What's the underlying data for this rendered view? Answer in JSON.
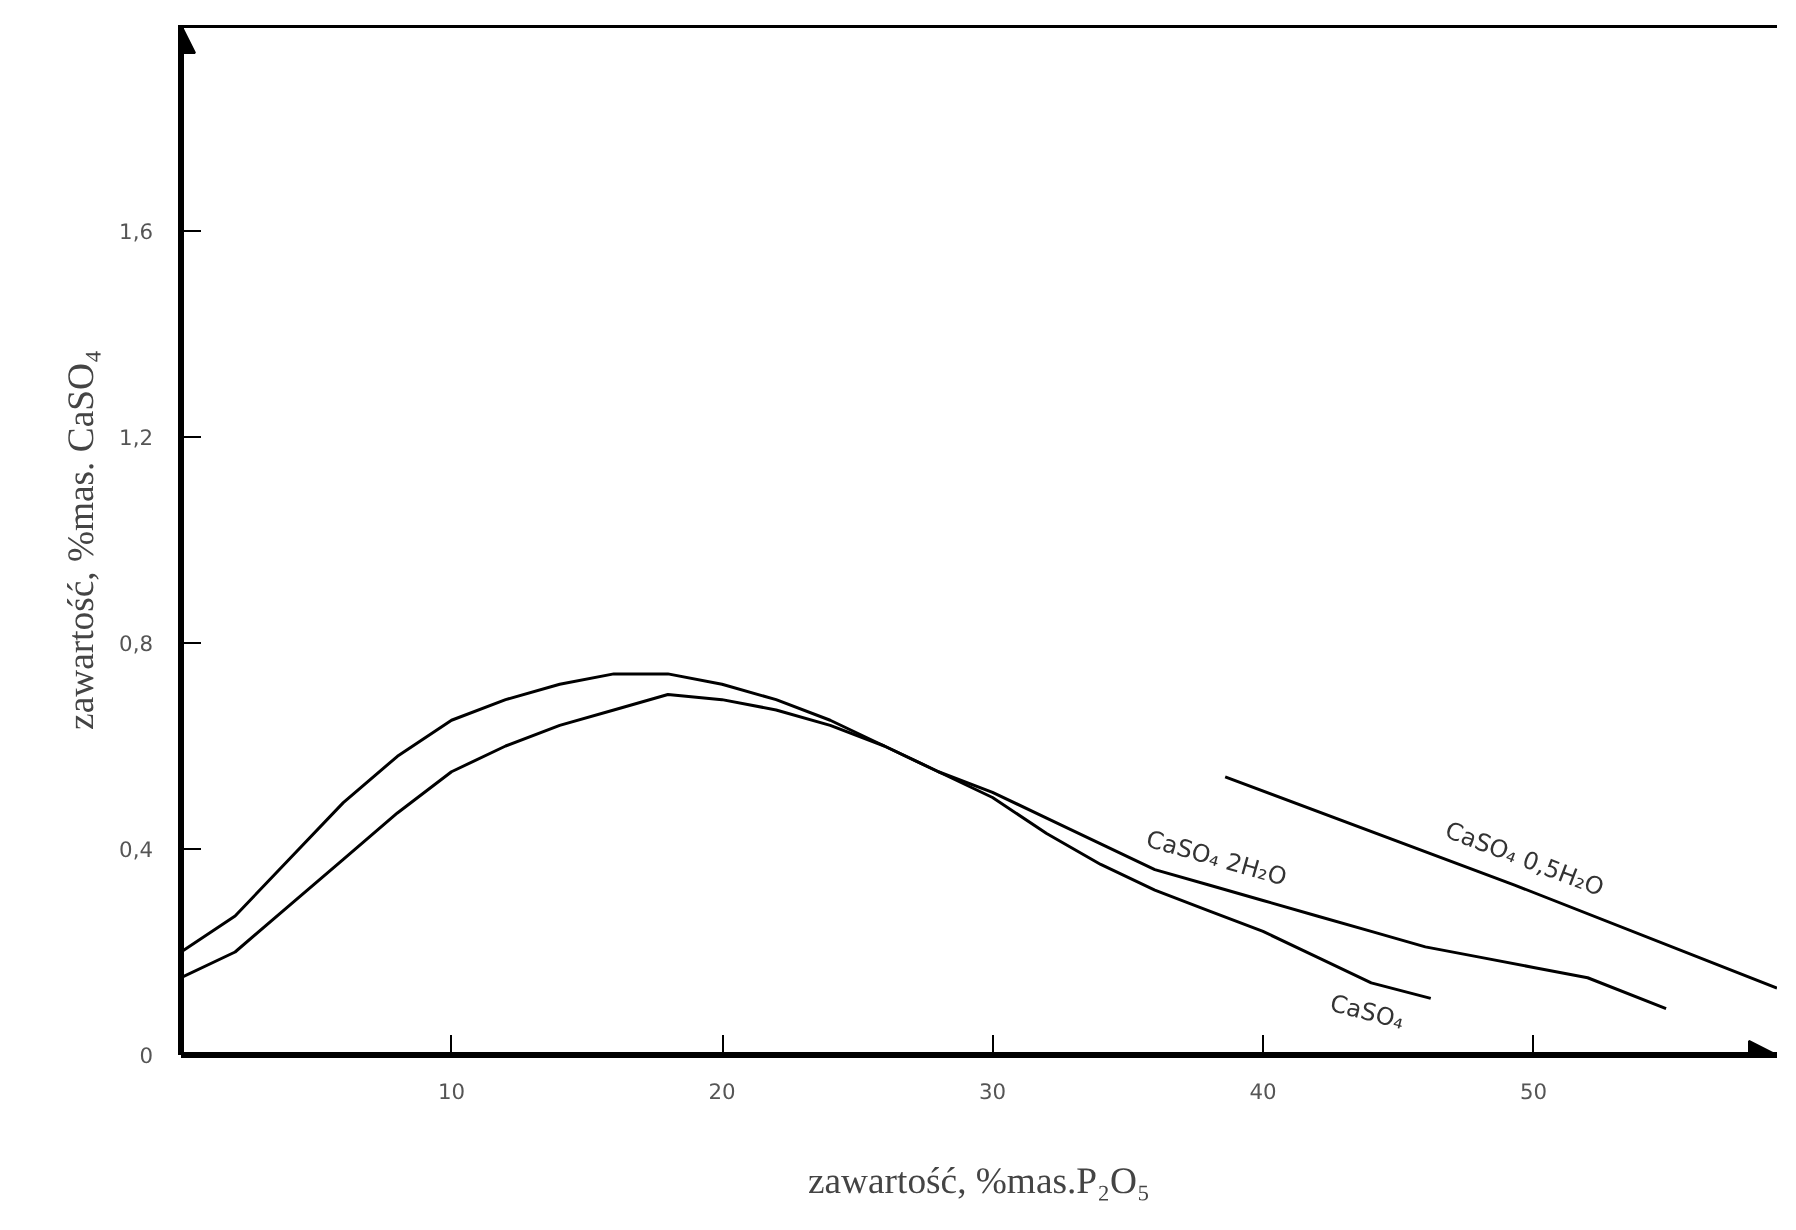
{
  "chart_data": {
    "type": "line",
    "xlabel": "zawartość, %mas.P₂O₅",
    "ylabel": "zawartość, %mas. CaSO₄",
    "xlim": [
      0,
      59
    ],
    "ylim": [
      0,
      2
    ],
    "xticks": [
      10,
      20,
      30,
      40,
      50
    ],
    "yticks": [
      0,
      {
        "value": 0.4,
        "label": "0,4"
      },
      {
        "value": 0.8,
        "label": "0,8"
      },
      {
        "value": 1.2,
        "label": "1,2"
      },
      {
        "value": 1.6,
        "label": "1,6"
      }
    ],
    "grid": false,
    "legend": false,
    "series": [
      {
        "name": "CaSO₄",
        "color": "#000000",
        "x": [
          0,
          2,
          4,
          6,
          8,
          10,
          12,
          14,
          16,
          18,
          20,
          22,
          24,
          26,
          28,
          30,
          32,
          34,
          36,
          38,
          40,
          42,
          44,
          46.2
        ],
        "values": [
          0.2,
          0.27,
          0.38,
          0.49,
          0.58,
          0.65,
          0.69,
          0.72,
          0.74,
          0.74,
          0.72,
          0.69,
          0.65,
          0.6,
          0.55,
          0.5,
          0.43,
          0.37,
          0.32,
          0.28,
          0.24,
          0.19,
          0.14,
          0.11
        ]
      },
      {
        "name": "CaSO₄ 2H₂O",
        "color": "#000000",
        "x": [
          0,
          2,
          4,
          6,
          8,
          10,
          12,
          14,
          16,
          18,
          20,
          22,
          24,
          26,
          28,
          30,
          32,
          34,
          36,
          38,
          40,
          42,
          44,
          46,
          48,
          50,
          52,
          54.9
        ],
        "values": [
          0.15,
          0.2,
          0.29,
          0.38,
          0.47,
          0.55,
          0.6,
          0.64,
          0.67,
          0.7,
          0.69,
          0.67,
          0.64,
          0.6,
          0.55,
          0.51,
          0.46,
          0.41,
          0.36,
          0.33,
          0.3,
          0.27,
          0.24,
          0.21,
          0.19,
          0.17,
          0.15,
          0.09
        ]
      },
      {
        "name": "CaSO₄ 0,5H₂O",
        "color": "#000000",
        "x": [
          38.6,
          49.3,
          59
        ],
        "values": [
          0.54,
          0.33,
          0.13
        ]
      }
    ]
  }
}
